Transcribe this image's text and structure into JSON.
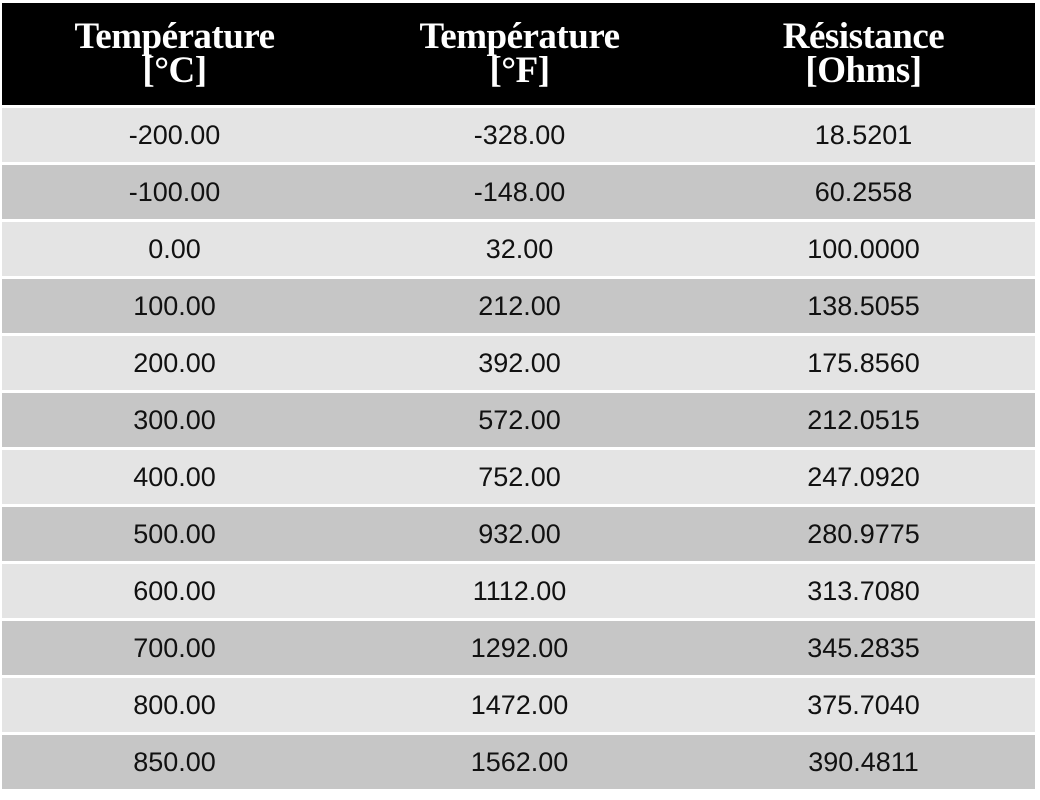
{
  "colors": {
    "header_bg": "#000000",
    "header_text": "#ffffff",
    "row_light": "#e4e4e4",
    "row_dark": "#c6c6c6"
  },
  "table": {
    "headers": [
      {
        "line1": "Température",
        "line2": "[°C]"
      },
      {
        "line1": "Température",
        "line2": "[°F]"
      },
      {
        "line1": "Résistance",
        "line2": "[Ohms]"
      }
    ],
    "rows": [
      [
        "-200.00",
        "-328.00",
        "18.5201"
      ],
      [
        "-100.00",
        "-148.00",
        "60.2558"
      ],
      [
        "0.00",
        "32.00",
        "100.0000"
      ],
      [
        "100.00",
        "212.00",
        "138.5055"
      ],
      [
        "200.00",
        "392.00",
        "175.8560"
      ],
      [
        "300.00",
        "572.00",
        "212.0515"
      ],
      [
        "400.00",
        "752.00",
        "247.0920"
      ],
      [
        "500.00",
        "932.00",
        "280.9775"
      ],
      [
        "600.00",
        "1112.00",
        "313.7080"
      ],
      [
        "700.00",
        "1292.00",
        "345.2835"
      ],
      [
        "800.00",
        "1472.00",
        "375.7040"
      ],
      [
        "850.00",
        "1562.00",
        "390.4811"
      ]
    ]
  }
}
